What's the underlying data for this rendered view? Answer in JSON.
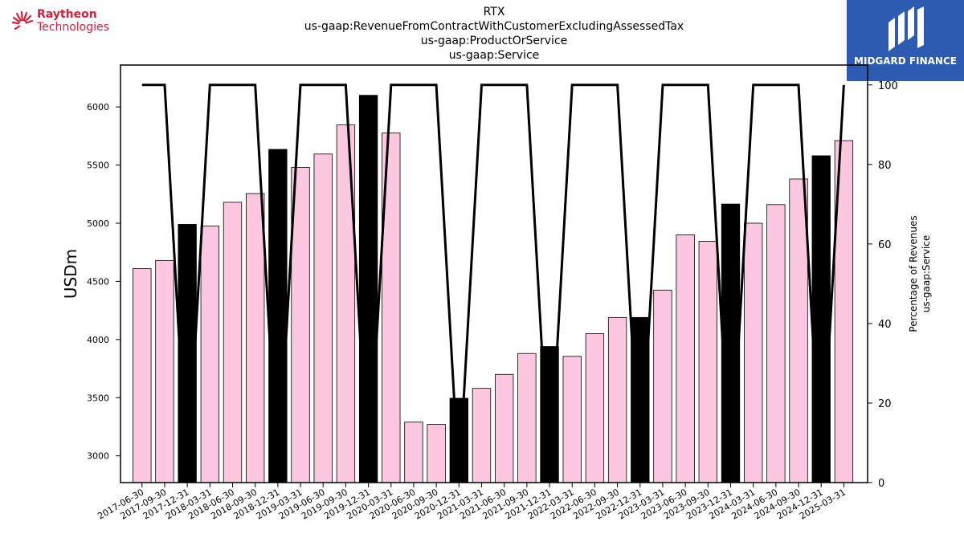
{
  "header": {
    "company_logo_line1": "Raytheon",
    "company_logo_line2": "Technologies",
    "watermark_text": "MIDGARD FINANCE"
  },
  "chart_data": {
    "type": "bar",
    "title_lines": [
      "RTX",
      "us-gaap:RevenueFromContractWithCustomerExcludingAssessedTax",
      "us-gaap:ProductOrService",
      "us-gaap:Service"
    ],
    "ylabel": "USDm",
    "y2label_lines": [
      "Percentage of Revenues",
      "us-gaap:Service"
    ],
    "ylim": [
      2770,
      6360
    ],
    "y2lim": [
      0,
      105
    ],
    "yticks": [
      3000,
      3500,
      4000,
      4500,
      5000,
      5500,
      6000
    ],
    "y2ticks": [
      0,
      20,
      40,
      60,
      80,
      100
    ],
    "categories": [
      "2017-06-30",
      "2017-09-30",
      "2017-12-31",
      "2018-03-31",
      "2018-06-30",
      "2018-09-30",
      "2018-12-31",
      "2019-03-31",
      "2019-06-30",
      "2019-09-30",
      "2019-12-31",
      "2020-03-31",
      "2020-06-30",
      "2020-09-30",
      "2020-12-31",
      "2021-03-31",
      "2021-06-30",
      "2021-09-30",
      "2021-12-31",
      "2022-03-31",
      "2022-06-30",
      "2022-09-30",
      "2022-12-31",
      "2023-03-31",
      "2023-06-30",
      "2023-09-30",
      "2023-12-31",
      "2024-03-31",
      "2024-06-30",
      "2024-09-30",
      "2024-12-31",
      "2025-03-31"
    ],
    "series": [
      {
        "values": [
          4610,
          4680,
          4990,
          4975,
          5180,
          5255,
          5635,
          5480,
          5595,
          5845,
          6100,
          5775,
          3290,
          3270,
          3495,
          3580,
          3700,
          3880,
          3940,
          3855,
          4050,
          4190,
          4190,
          4425,
          4900,
          4845,
          5165,
          5000,
          5160,
          5380,
          5580,
          5710
        ]
      },
      {
        "values": [
          100,
          100,
          0,
          100,
          100,
          100,
          0,
          100,
          100,
          100,
          0,
          100,
          100,
          100,
          0,
          100,
          100,
          100,
          0,
          100,
          100,
          100,
          0,
          100,
          100,
          100,
          0,
          100,
          100,
          100,
          0,
          100
        ]
      }
    ],
    "annual_markers": [
      false,
      false,
      true,
      false,
      false,
      false,
      true,
      false,
      false,
      false,
      true,
      false,
      false,
      false,
      true,
      false,
      false,
      false,
      true,
      false,
      false,
      false,
      true,
      false,
      false,
      false,
      true,
      false,
      false,
      false,
      true,
      false
    ],
    "colors": {
      "quarter_bar": "#fcc8e0",
      "annual_bar": "#000000",
      "line": "#000000",
      "edge": "#000000"
    }
  }
}
